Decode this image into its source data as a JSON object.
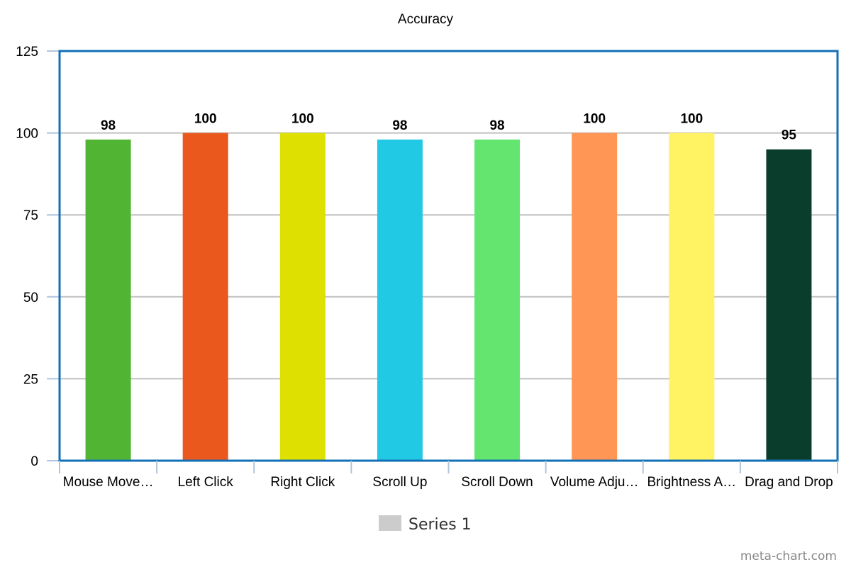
{
  "chart_data": {
    "type": "bar",
    "title": "Accuracy",
    "xlabel": "",
    "ylabel": "",
    "categories": [
      "Mouse Move…",
      "Left Click",
      "Right Click",
      "Scroll Up",
      "Scroll Down",
      "Volume Adju…",
      "Brightness A…",
      "Drag and Drop"
    ],
    "series": [
      {
        "name": "Series 1",
        "values": [
          98,
          100,
          100,
          98,
          98,
          100,
          100,
          95
        ]
      }
    ],
    "bar_colors": [
      "#52b433",
      "#ea581e",
      "#dde000",
      "#22c9e5",
      "#63e570",
      "#ff9655",
      "#fff263",
      "#0b3d2c"
    ],
    "ylim": [
      0,
      125
    ],
    "yticks": [
      0,
      25,
      50,
      75,
      100,
      125
    ],
    "grid": true,
    "legend": {
      "position": "bottom",
      "label": "Series 1",
      "color": "#cccccc"
    },
    "frame_color": "#1170b7",
    "grid_color": "#c0c0c0",
    "credit": "meta-chart.com"
  }
}
